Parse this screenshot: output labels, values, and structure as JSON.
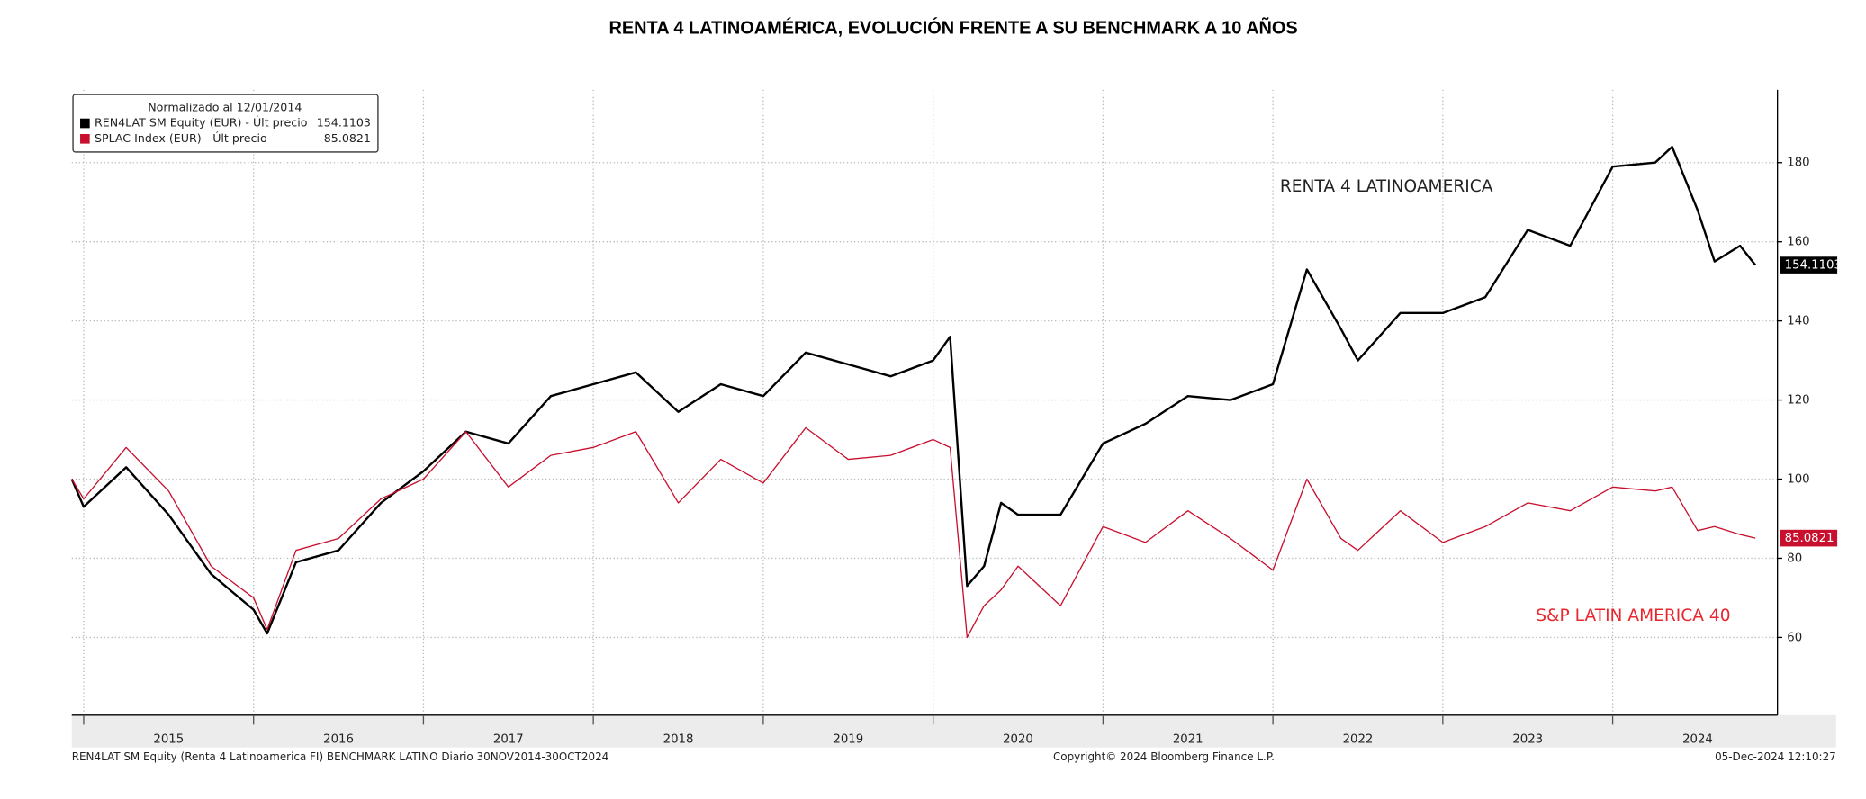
{
  "chart_data": {
    "type": "line",
    "title": "RENTA 4 LATINOAMÉRICA, EVOLUCIÓN FRENTE A SU BENCHMARK A 10 AÑOS",
    "legend_title": "Normalizado al 12/01/2014",
    "annotations": [
      "RENTA 4 LATINOAMERICA",
      "S&P LATIN AMERICA 40"
    ],
    "footer": [
      "REN4LAT SM Equity (Renta 4 Latinoamerica FI) BENCHMARK LATINO  Diario 30NOV2014-30OCT2024",
      "Copyright© 2024 Bloomberg Finance L.P.",
      "05-Dec-2024 12:10:27"
    ],
    "legend": "upper left",
    "grid": true,
    "x": [
      2014.93,
      2015.0,
      2015.25,
      2015.5,
      2015.75,
      2016.0,
      2016.08,
      2016.25,
      2016.5,
      2016.75,
      2017.0,
      2017.25,
      2017.5,
      2017.75,
      2018.0,
      2018.25,
      2018.5,
      2018.75,
      2019.0,
      2019.25,
      2019.5,
      2019.75,
      2020.0,
      2020.1,
      2020.2,
      2020.3,
      2020.4,
      2020.5,
      2020.75,
      2021.0,
      2021.25,
      2021.5,
      2021.75,
      2022.0,
      2022.2,
      2022.4,
      2022.5,
      2022.75,
      2023.0,
      2023.25,
      2023.5,
      2023.75,
      2024.0,
      2024.25,
      2024.35,
      2024.5,
      2024.6,
      2024.75,
      2024.84
    ],
    "series": [
      {
        "name": "REN4LAT SM Equity (EUR) - Últ precio",
        "color": "#000000",
        "values": [
          100,
          93,
          103,
          91,
          76,
          67,
          61,
          79,
          82,
          94,
          102,
          112,
          109,
          121,
          124,
          127,
          117,
          124,
          121,
          132,
          129,
          126,
          130,
          136,
          73,
          78,
          94,
          91,
          91,
          109,
          114,
          121,
          120,
          124,
          153,
          138,
          130,
          142,
          142,
          146,
          163,
          159,
          179,
          180,
          184,
          168,
          155,
          159,
          154.1103
        ]
      },
      {
        "name": "SPLAC Index (EUR) - Últ precio",
        "color": "#c8102e",
        "values": [
          100,
          95,
          108,
          97,
          78,
          70,
          62,
          82,
          85,
          95,
          100,
          112,
          98,
          106,
          108,
          112,
          94,
          105,
          99,
          113,
          105,
          106,
          110,
          108,
          60,
          68,
          72,
          78,
          68,
          88,
          84,
          92,
          85,
          77,
          100,
          85,
          82,
          92,
          84,
          88,
          94,
          92,
          98,
          97,
          98,
          87,
          88,
          86,
          85.0821
        ]
      }
    ],
    "xlim": [
      2014.93,
      2024.97
    ],
    "xticks": [
      2015,
      2016,
      2017,
      2018,
      2019,
      2020,
      2021,
      2022,
      2023,
      2024
    ],
    "ylim": [
      40.35,
      198.4
    ],
    "yticks": [
      60,
      80,
      100,
      120,
      140,
      160,
      180
    ]
  }
}
